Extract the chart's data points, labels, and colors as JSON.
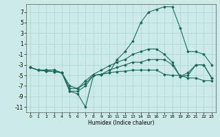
{
  "xlabel": "Humidex (Indice chaleur)",
  "background_color": "#cceae7",
  "grid_color": "#aad4d0",
  "line_color": "#1a6b5e",
  "xlim": [
    -0.5,
    23.5
  ],
  "ylim": [
    -12,
    8.5
  ],
  "yticks": [
    -11,
    -9,
    -7,
    -5,
    -3,
    -1,
    1,
    3,
    5,
    7
  ],
  "xticks": [
    0,
    1,
    2,
    3,
    4,
    5,
    6,
    7,
    8,
    9,
    10,
    11,
    12,
    13,
    14,
    15,
    16,
    17,
    18,
    19,
    20,
    21,
    22,
    23
  ],
  "hours": [
    0,
    1,
    2,
    3,
    4,
    5,
    6,
    7,
    8,
    9,
    10,
    11,
    12,
    13,
    14,
    15,
    16,
    17,
    18,
    19,
    20,
    21,
    22,
    23
  ],
  "line1_y": [
    -3.5,
    -4,
    -4,
    -4,
    -4.5,
    -8,
    -8.5,
    -11,
    -5,
    -4.8,
    -4.5,
    -4.3,
    -4.2,
    -4,
    -4,
    -4,
    -4,
    -4.8,
    -5,
    -5,
    -5.5,
    -5.5,
    -6,
    -6
  ],
  "line2_y": [
    -3.5,
    -4,
    -4,
    -4,
    -4.5,
    -8,
    -8,
    -7,
    -5,
    -4.8,
    -4.5,
    -2,
    -0.5,
    1.5,
    5,
    7,
    7.5,
    8,
    8,
    4,
    -0.5,
    -0.5,
    -1,
    -3
  ],
  "line3_y": [
    -3.5,
    -4,
    -4.2,
    -4.3,
    -4.5,
    -7.5,
    -7.5,
    -6.5,
    -5,
    -4.8,
    -4,
    -3.5,
    -3,
    -2.5,
    -2.5,
    -2,
    -2,
    -2,
    -3,
    -5.2,
    -5,
    -3,
    -3,
    -5.5
  ],
  "line4_y": [
    -3.5,
    -4,
    -4.2,
    -4.3,
    -4.5,
    -7,
    -7.5,
    -6,
    -4.8,
    -4,
    -3.2,
    -2.5,
    -2,
    -1,
    -0.5,
    0,
    0,
    -1,
    -2.5,
    -5.2,
    -4.5,
    -3,
    -3,
    -5.5
  ],
  "xlabel_fontsize": 5.5,
  "tick_fontsize_x": 4.5,
  "tick_fontsize_y": 5.5
}
